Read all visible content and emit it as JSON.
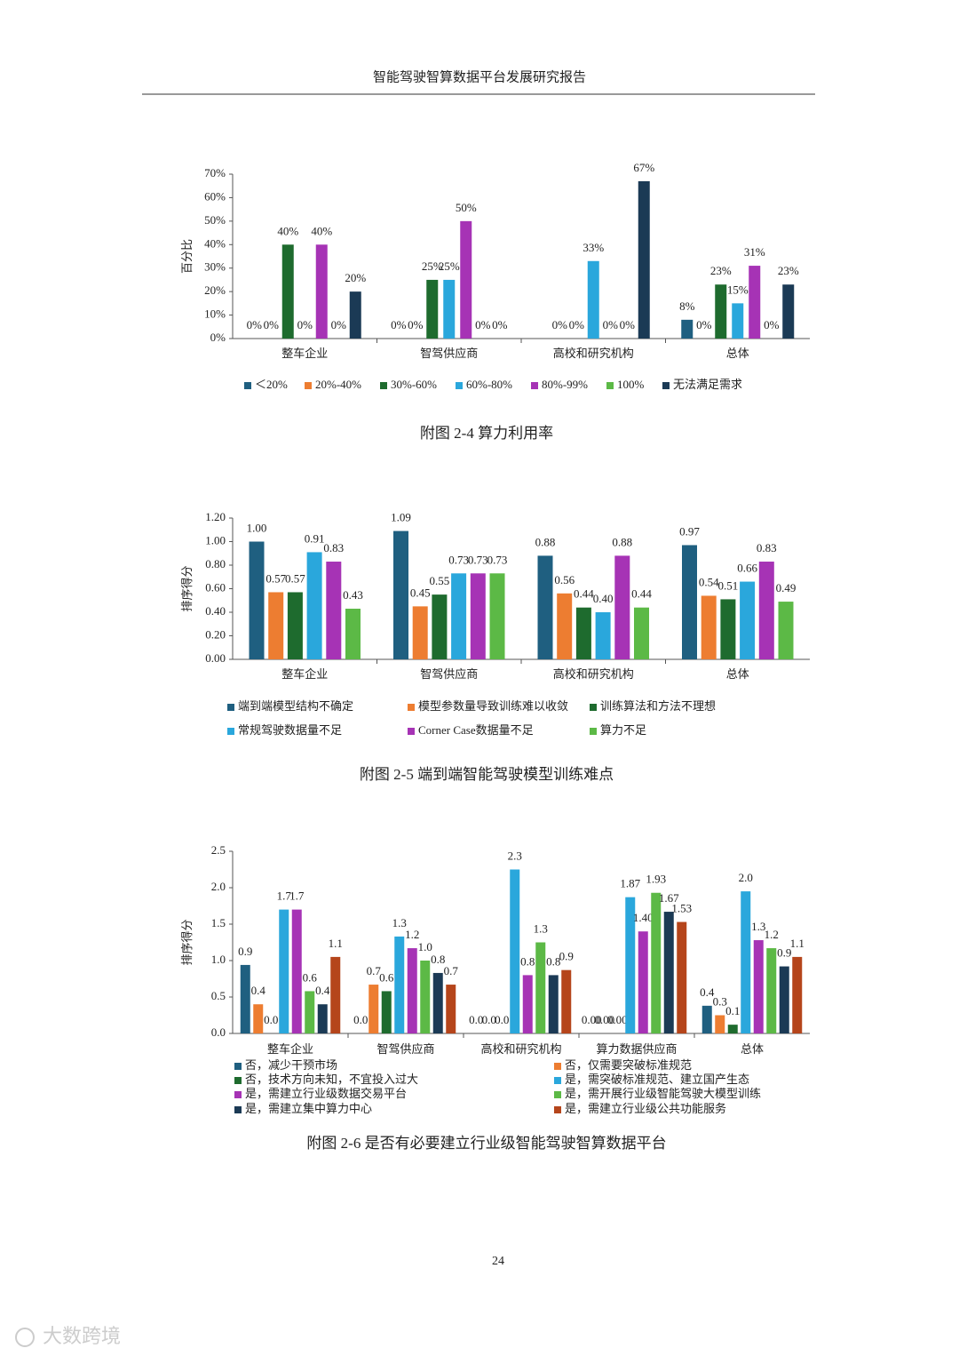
{
  "header": "智能驾驶智算数据平台发展研究报告",
  "page_number": "24",
  "watermark": "大数跨境",
  "chart_data": [
    {
      "type": "bar",
      "title": "附图 2-4  算力利用率",
      "ylabel": "百分比",
      "categories": [
        "整车企业",
        "智驾供应商",
        "高校和研究机构",
        "总体"
      ],
      "ylim": [
        0,
        70
      ],
      "yticks": [
        {
          "value": 0,
          "label": "0%"
        },
        {
          "value": 10,
          "label": "10%"
        },
        {
          "value": 20,
          "label": "20%"
        },
        {
          "value": 30,
          "label": "30%"
        },
        {
          "value": 40,
          "label": "40%"
        },
        {
          "value": 50,
          "label": "50%"
        },
        {
          "value": 60,
          "label": "60%"
        },
        {
          "value": 70,
          "label": "70%"
        }
      ],
      "legend": "bottom",
      "series": [
        {
          "name": "＜20%",
          "color": "#1f5f80",
          "values": [
            0,
            0,
            0,
            8
          ],
          "value_labels": [
            "0%",
            "0%",
            "",
            "8%"
          ]
        },
        {
          "name": "20%-40%",
          "color": "#ed7d31",
          "values": [
            0,
            0,
            0,
            0
          ],
          "value_labels": [
            "0%",
            "0%",
            "0%",
            "0%"
          ]
        },
        {
          "name": "30%-60%",
          "color": "#1e6b2e",
          "values": [
            40,
            25,
            0,
            23
          ],
          "value_labels": [
            "40%",
            "25%",
            "0%",
            "23%"
          ]
        },
        {
          "name": "60%-80%",
          "color": "#2aa7dc",
          "values": [
            0,
            25,
            33,
            15
          ],
          "value_labels": [
            "0%",
            "25%",
            "33%",
            "15%"
          ]
        },
        {
          "name": "80%-99%",
          "color": "#a633b5",
          "values": [
            40,
            50,
            0,
            31
          ],
          "value_labels": [
            "40%",
            "50%",
            "0%",
            "31%"
          ]
        },
        {
          "name": "100%",
          "color": "#5cb946",
          "values": [
            0,
            0,
            0,
            0
          ],
          "value_labels": [
            "0%",
            "0%",
            "0%",
            "0%"
          ]
        },
        {
          "name": "无法满足需求",
          "color": "#1b3a55",
          "values": [
            20,
            0,
            67,
            23
          ],
          "value_labels": [
            "20%",
            "0%",
            "67%",
            "23%"
          ]
        }
      ]
    },
    {
      "type": "bar",
      "title": "附图 2-5  端到端智能驾驶模型训练难点",
      "ylabel": "排序得分",
      "categories": [
        "整车企业",
        "智驾供应商",
        "高校和研究机构",
        "总体"
      ],
      "ylim": [
        0,
        1.2
      ],
      "yticks": [
        {
          "value": 0,
          "label": "0.00"
        },
        {
          "value": 0.2,
          "label": "0.20"
        },
        {
          "value": 0.4,
          "label": "0.40"
        },
        {
          "value": 0.6,
          "label": "0.60"
        },
        {
          "value": 0.8,
          "label": "0.80"
        },
        {
          "value": 1,
          "label": "1.00"
        },
        {
          "value": 1.2,
          "label": "1.20"
        }
      ],
      "legend": "bottom",
      "series": [
        {
          "name": "端到端模型结构不确定",
          "color": "#1f5f80",
          "values": [
            1,
            1.09,
            0.88,
            0.97
          ],
          "value_labels": [
            "1.00",
            "1.09",
            "0.88",
            "0.97"
          ]
        },
        {
          "name": "模型参数量导致训练难以收敛",
          "color": "#ed7d31",
          "values": [
            0.57,
            0.45,
            0.56,
            0.54
          ],
          "value_labels": [
            "0.57",
            "0.45",
            "0.56",
            "0.54"
          ]
        },
        {
          "name": "训练算法和方法不理想",
          "color": "#1e6b2e",
          "values": [
            0.57,
            0.55,
            0.44,
            0.51
          ],
          "value_labels": [
            "0.57",
            "0.55",
            "0.44",
            "0.51"
          ]
        },
        {
          "name": "常规驾驶数据量不足",
          "color": "#2aa7dc",
          "values": [
            0.91,
            0.73,
            0.4,
            0.66
          ],
          "value_labels": [
            "0.91",
            "0.73",
            "0.40",
            "0.66"
          ]
        },
        {
          "name": "Corner Case数据量不足",
          "color": "#a633b5",
          "values": [
            0.83,
            0.73,
            0.88,
            0.83
          ],
          "value_labels": [
            "0.83",
            "0.73",
            "0.88",
            "0.83"
          ]
        },
        {
          "name": "算力不足",
          "color": "#5cb946",
          "values": [
            0.43,
            0.73,
            0.44,
            0.49
          ],
          "value_labels": [
            "0.43",
            "0.73",
            "0.44",
            "0.49"
          ]
        }
      ]
    },
    {
      "type": "bar",
      "title": "附图 2-6 是否有必要建立行业级智能驾驶智算数据平台",
      "ylabel": "排序得分",
      "categories": [
        "整车企业",
        "智驾供应商",
        "高校和研究机构",
        "算力数据供应商",
        "总体"
      ],
      "ylim": [
        0,
        2.5
      ],
      "yticks": [
        {
          "value": 0,
          "label": "0.0"
        },
        {
          "value": 0.5,
          "label": "0.5"
        },
        {
          "value": 1,
          "label": "1.0"
        },
        {
          "value": 1.5,
          "label": "1.5"
        },
        {
          "value": 2,
          "label": "2.0"
        },
        {
          "value": 2.5,
          "label": "2.5"
        }
      ],
      "legend": "bottom",
      "series": [
        {
          "name": "否，减少干预市场",
          "color": "#1f5f80",
          "values": [
            0.94,
            0,
            0,
            0,
            0.38
          ],
          "value_labels": [
            "0.9",
            "0.0",
            "0.0",
            "0.00",
            "0.4"
          ]
        },
        {
          "name": "否，仅需要突破标准规范",
          "color": "#ed7d31",
          "values": [
            0.4,
            0.67,
            0,
            0,
            0.25
          ],
          "value_labels": [
            "0.4",
            "0.7",
            "0.0",
            "0.00",
            "0.3"
          ]
        },
        {
          "name": "否，技术方向未知，不宜投入过大",
          "color": "#1e6b2e",
          "values": [
            0,
            0.58,
            0,
            0,
            0.12
          ],
          "value_labels": [
            "0.0",
            "0.6",
            "0.0",
            "0.00",
            "0.1"
          ]
        },
        {
          "name": "是，需突破标准规范、建立国产生态",
          "color": "#2aa7dc",
          "values": [
            1.7,
            1.33,
            2.25,
            1.87,
            1.95
          ],
          "value_labels": [
            "1.7",
            "1.3",
            "2.3",
            "1.87",
            "2.0"
          ]
        },
        {
          "name": "是，需建立行业级数据交易平台",
          "color": "#a633b5",
          "values": [
            1.7,
            1.17,
            0.8,
            1.4,
            1.28
          ],
          "value_labels": [
            "1.7",
            "1.2",
            "0.8",
            "1.40",
            "1.3"
          ]
        },
        {
          "name": "是，需开展行业级智能驾驶大模型训练",
          "color": "#5cb946",
          "values": [
            0.58,
            1,
            1.25,
            1.93,
            1.17
          ],
          "value_labels": [
            "0.6",
            "1.0",
            "1.3",
            "1.93",
            "1.2"
          ]
        },
        {
          "name": "是，需建立集中算力中心",
          "color": "#1b3a55",
          "values": [
            0.4,
            0.83,
            0.8,
            1.67,
            0.92
          ],
          "value_labels": [
            "0.4",
            "0.8",
            "0.8",
            "1.67",
            "0.9"
          ]
        },
        {
          "name": "是，需建立行业级公共功能服务",
          "color": "#b5451b",
          "values": [
            1.05,
            0.67,
            0.87,
            1.53,
            1.05
          ],
          "value_labels": [
            "1.1",
            "0.7",
            "0.9",
            "1.53",
            "1.1"
          ]
        }
      ]
    }
  ]
}
